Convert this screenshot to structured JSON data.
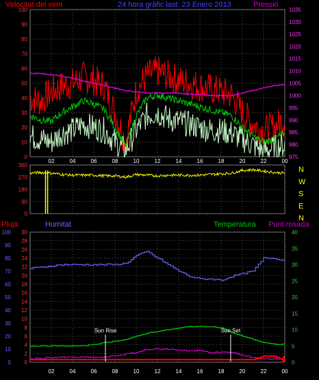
{
  "colors": {
    "background": "#000000",
    "gust": "#ff0000",
    "avg_wind": "#00cc00",
    "min_wind": "#ccffcc",
    "pressure": "#cc00cc",
    "direction": "#ffff00",
    "rain": "#ff0000",
    "humidity": "#6666ff",
    "temperature": "#00cc00",
    "dewpoint": "#cc00cc",
    "axis_left": "#ff3333",
    "axis_right_top": "#ff33ff",
    "axis_humidity": "#6666ff",
    "axis_temp": "#33cc33",
    "tick_text": "#ffffff",
    "sun_marker": "#ffffff"
  },
  "header": {
    "wind_label": "Velocitat del vent",
    "title": "24 hora gràfic last: 23 Enero 2013",
    "pressure_label": "Pressió"
  },
  "direction_letters": [
    "N",
    "W",
    "S",
    "E",
    "N"
  ],
  "bottom_labels": {
    "rain": "Pluja",
    "humidity": "Humitat",
    "temperature": "Temperatura",
    "dewpoint": "Punt rosada",
    "sunrise": "Sun Rise",
    "sunset": "Sun Set"
  },
  "chart_data": [
    {
      "type": "line",
      "name": "wind-pressure",
      "x_ticks": [
        "02",
        "04",
        "06",
        "08",
        "10",
        "12",
        "14",
        "16",
        "18",
        "20",
        "22",
        "00"
      ],
      "y_left": {
        "ticks": [
          0,
          10,
          20,
          30,
          40,
          50,
          60,
          70,
          80,
          90,
          100
        ],
        "range": [
          0,
          100
        ]
      },
      "y_right": {
        "ticks": [
          975,
          980,
          985,
          990,
          995,
          1000,
          1005,
          1010,
          1015,
          1020,
          1025,
          1030,
          1035
        ],
        "range": [
          975,
          1035
        ]
      },
      "x_hours": [
        0,
        1,
        2,
        3,
        4,
        5,
        6,
        7,
        8,
        9,
        10,
        11,
        12,
        13,
        14,
        15,
        16,
        17,
        18,
        19,
        20,
        21,
        22,
        23,
        24
      ],
      "series": [
        {
          "key": "gust",
          "values": [
            40,
            38,
            44,
            48,
            50,
            54,
            52,
            48,
            30,
            10,
            45,
            55,
            58,
            55,
            52,
            50,
            48,
            46,
            44,
            42,
            30,
            22,
            18,
            20,
            26
          ]
        },
        {
          "key": "avg_wind",
          "values": [
            28,
            25,
            24,
            30,
            34,
            38,
            36,
            32,
            20,
            7,
            28,
            40,
            42,
            40,
            38,
            36,
            34,
            32,
            30,
            28,
            20,
            14,
            10,
            12,
            16
          ]
        },
        {
          "key": "min_wind",
          "values": [
            14,
            12,
            10,
            16,
            18,
            22,
            20,
            18,
            10,
            4,
            18,
            28,
            30,
            26,
            24,
            22,
            20,
            18,
            18,
            16,
            12,
            8,
            4,
            6,
            8
          ]
        },
        {
          "key": "pressure",
          "values": [
            1009,
            1009,
            1008.5,
            1008,
            1007,
            1006,
            1005,
            1004,
            1003,
            1002,
            1001.5,
            1001,
            1001,
            1001,
            1001,
            1000.5,
            1000.5,
            1000,
            1000,
            1000,
            1001,
            1002,
            1003,
            1004,
            1004.5
          ]
        }
      ]
    },
    {
      "type": "line",
      "name": "wind-direction",
      "x_ticks": [
        "02",
        "04",
        "06",
        "08",
        "10",
        "12",
        "14",
        "16",
        "18",
        "20",
        "22",
        "00"
      ],
      "y": {
        "ticks": [
          0,
          90,
          180,
          270,
          360
        ],
        "range": [
          0,
          360
        ]
      },
      "x_hours": [
        0,
        1,
        2,
        3,
        4,
        5,
        6,
        7,
        8,
        9,
        10,
        11,
        12,
        13,
        14,
        15,
        16,
        17,
        18,
        19,
        20,
        21,
        22,
        23,
        24
      ],
      "series": [
        {
          "key": "direction",
          "values": [
            300,
            305,
            300,
            290,
            285,
            285,
            285,
            280,
            280,
            270,
            290,
            285,
            280,
            285,
            285,
            285,
            285,
            290,
            295,
            300,
            320,
            325,
            315,
            305,
            300
          ]
        }
      ]
    },
    {
      "type": "line",
      "name": "rain-humidity-temp",
      "x_ticks": [
        "02",
        "04",
        "06",
        "08",
        "10",
        "12",
        "14",
        "16",
        "18",
        "20",
        "22",
        "00"
      ],
      "y_rain": {
        "ticks": [
          0,
          2,
          4,
          6,
          8,
          10,
          12,
          14,
          16,
          18,
          20,
          22,
          24,
          26,
          28,
          30
        ],
        "range": [
          0,
          30
        ]
      },
      "y_humidity": {
        "ticks": [
          0,
          10,
          20,
          30,
          40,
          50,
          60,
          70,
          80,
          90,
          100
        ],
        "range": [
          0,
          100
        ]
      },
      "y_temp": {
        "ticks": [
          0,
          5,
          10,
          15,
          20,
          25,
          30,
          35,
          40
        ],
        "range": [
          0,
          40
        ]
      },
      "x_hours": [
        0,
        1,
        2,
        3,
        4,
        5,
        6,
        7,
        8,
        9,
        10,
        11,
        12,
        13,
        14,
        15,
        16,
        17,
        18,
        19,
        20,
        21,
        22,
        23,
        24
      ],
      "series": [
        {
          "key": "humidity",
          "values": [
            72,
            73,
            74,
            75,
            75,
            75,
            75,
            75,
            75,
            76,
            82,
            85,
            80,
            75,
            70,
            66,
            64,
            64,
            63,
            66,
            68,
            70,
            80,
            80,
            78
          ]
        },
        {
          "key": "temperature",
          "values": [
            5,
            5,
            5,
            5,
            5,
            5,
            5.5,
            6,
            6.5,
            7,
            8,
            9,
            9.5,
            10,
            10.5,
            11,
            11,
            11,
            10.5,
            9,
            8,
            7,
            6,
            5.5,
            5.5
          ]
        },
        {
          "key": "dewpoint",
          "values": [
            1,
            1.2,
            1.5,
            1.5,
            1.5,
            1.5,
            1.5,
            1.5,
            2,
            2.5,
            3,
            4,
            4,
            4,
            3.8,
            3.5,
            3.5,
            3,
            3,
            3,
            2,
            1.5,
            1,
            1,
            1
          ]
        },
        {
          "key": "rain",
          "values": [
            0.6,
            0.6,
            0.6,
            0.6,
            0.6,
            0.6,
            0.6,
            0.6,
            0.6,
            0.6,
            0.6,
            0.6,
            0.6,
            0.6,
            0.6,
            0.6,
            0.6,
            0.6,
            0.6,
            0.6,
            0.6,
            0.6,
            1.4,
            1.4,
            0.2
          ]
        }
      ],
      "markers": [
        {
          "key": "sunrise",
          "hour": 7.1
        },
        {
          "key": "sunset",
          "hour": 18.9
        }
      ]
    }
  ]
}
